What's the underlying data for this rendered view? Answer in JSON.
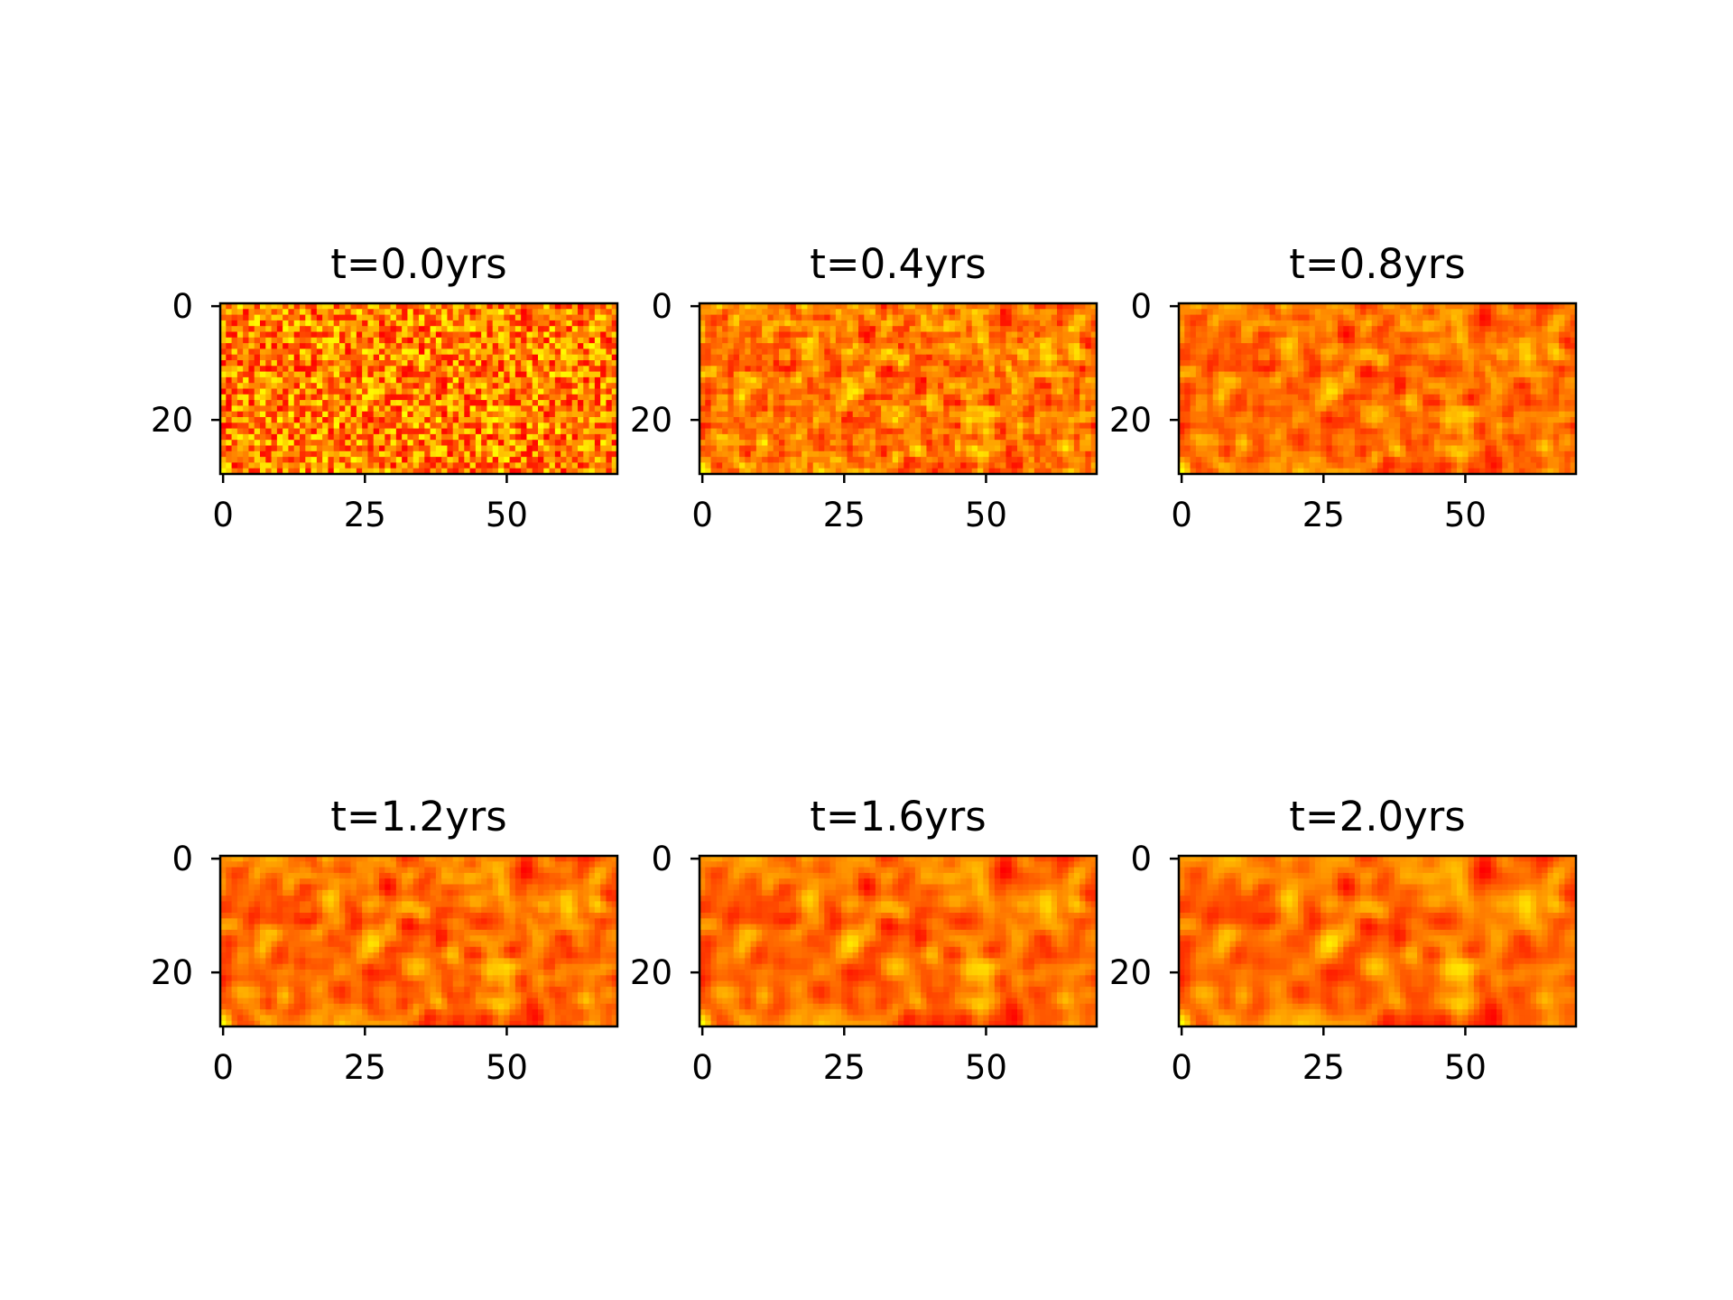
{
  "chart_data": {
    "type": "heatmap",
    "layout": {
      "rows": 2,
      "cols": 3
    },
    "colormap": {
      "name": "autumn",
      "low": "#ff0000",
      "high": "#ffff00"
    },
    "grid_shape": {
      "rows": 30,
      "cols": 70
    },
    "x_ticks": [
      "0",
      "25",
      "50"
    ],
    "y_ticks": [
      "0",
      "20"
    ],
    "xlim": [
      0,
      70
    ],
    "ylim": [
      30,
      0
    ],
    "panels": [
      {
        "title": "t=0.0yrs",
        "smoothing": 0
      },
      {
        "title": "t=0.4yrs",
        "smoothing": 1
      },
      {
        "title": "t=0.8yrs",
        "smoothing": 2
      },
      {
        "title": "t=1.2yrs",
        "smoothing": 3
      },
      {
        "title": "t=1.6yrs",
        "smoothing": 4
      },
      {
        "title": "t=2.0yrs",
        "smoothing": 5
      }
    ]
  }
}
